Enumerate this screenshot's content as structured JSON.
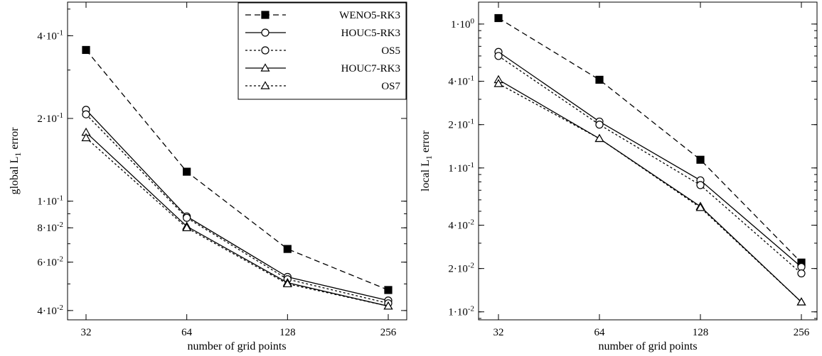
{
  "chart_data": [
    {
      "type": "line",
      "title": "",
      "xlabel": "number of grid points",
      "ylabel_main": "global L",
      "ylabel_sub": "1",
      "ylabel_tail": " error",
      "x": [
        32,
        64,
        128,
        256
      ],
      "x_tick_labels": [
        "32",
        "64",
        "128",
        "256"
      ],
      "xscale": "log2",
      "yscale": "log",
      "ylim": [
        0.037,
        0.53
      ],
      "y_ticks": [
        {
          "value": 0.04,
          "mant": "4·10",
          "exp": "-2"
        },
        {
          "value": 0.06,
          "mant": "6·10",
          "exp": "-2"
        },
        {
          "value": 0.08,
          "mant": "8·10",
          "exp": "-2"
        },
        {
          "value": 0.1,
          "mant": "1·10",
          "exp": "-1"
        },
        {
          "value": 0.2,
          "mant": "2·10",
          "exp": "-1"
        },
        {
          "value": 0.4,
          "mant": "4·10",
          "exp": "-1"
        }
      ],
      "legend": "top-right",
      "grid": false,
      "series": [
        {
          "name": "WENO5-RK3",
          "values": [
            0.355,
            0.128,
            0.067,
            0.0475
          ]
        },
        {
          "name": "HOUC5-RK3",
          "values": [
            0.215,
            0.088,
            0.053,
            0.0435
          ]
        },
        {
          "name": "OS5",
          "values": [
            0.207,
            0.087,
            0.052,
            0.0425
          ]
        },
        {
          "name": "HOUC7-RK3",
          "values": [
            0.178,
            0.081,
            0.0505,
            0.0415
          ]
        },
        {
          "name": "OS7",
          "values": [
            0.17,
            0.08,
            0.05,
            0.0415
          ]
        }
      ]
    },
    {
      "type": "line",
      "title": "",
      "xlabel": "number of grid points",
      "ylabel_main": "local L",
      "ylabel_sub": "1",
      "ylabel_tail": " error",
      "x": [
        32,
        64,
        128,
        256
      ],
      "x_tick_labels": [
        "32",
        "64",
        "128",
        "256"
      ],
      "xscale": "log2",
      "yscale": "log",
      "ylim": [
        0.0088,
        1.42
      ],
      "y_ticks": [
        {
          "value": 0.01,
          "mant": "1·10",
          "exp": "-2"
        },
        {
          "value": 0.02,
          "mant": "2·10",
          "exp": "-2"
        },
        {
          "value": 0.04,
          "mant": "4·10",
          "exp": "-2"
        },
        {
          "value": 0.1,
          "mant": "1·10",
          "exp": "-1"
        },
        {
          "value": 0.2,
          "mant": "2·10",
          "exp": "-1"
        },
        {
          "value": 0.4,
          "mant": "4·10",
          "exp": "-1"
        },
        {
          "value": 1.0,
          "mant": "1·10",
          "exp": "0"
        }
      ],
      "grid": false,
      "series": [
        {
          "name": "WENO5-RK3",
          "values": [
            1.1,
            0.41,
            0.114,
            0.022
          ]
        },
        {
          "name": "HOUC5-RK3",
          "values": [
            0.64,
            0.21,
            0.082,
            0.0205
          ]
        },
        {
          "name": "OS5",
          "values": [
            0.6,
            0.2,
            0.076,
            0.0185
          ]
        },
        {
          "name": "HOUC7-RK3",
          "values": [
            0.41,
            0.16,
            0.054,
            0.0117
          ]
        },
        {
          "name": "OS7",
          "values": [
            0.385,
            0.16,
            0.053,
            0.0117
          ]
        }
      ]
    }
  ],
  "styles": [
    {
      "stroke": "#000000",
      "dash": "8,5",
      "marker": "square",
      "filled": true
    },
    {
      "stroke": "#000000",
      "dash": "",
      "marker": "circle",
      "filled": false
    },
    {
      "stroke": "#000000",
      "dash": "3,3",
      "marker": "circle",
      "filled": false
    },
    {
      "stroke": "#000000",
      "dash": "",
      "marker": "triangle",
      "filled": false
    },
    {
      "stroke": "#000000",
      "dash": "3,3",
      "marker": "triangle",
      "filled": false
    }
  ]
}
